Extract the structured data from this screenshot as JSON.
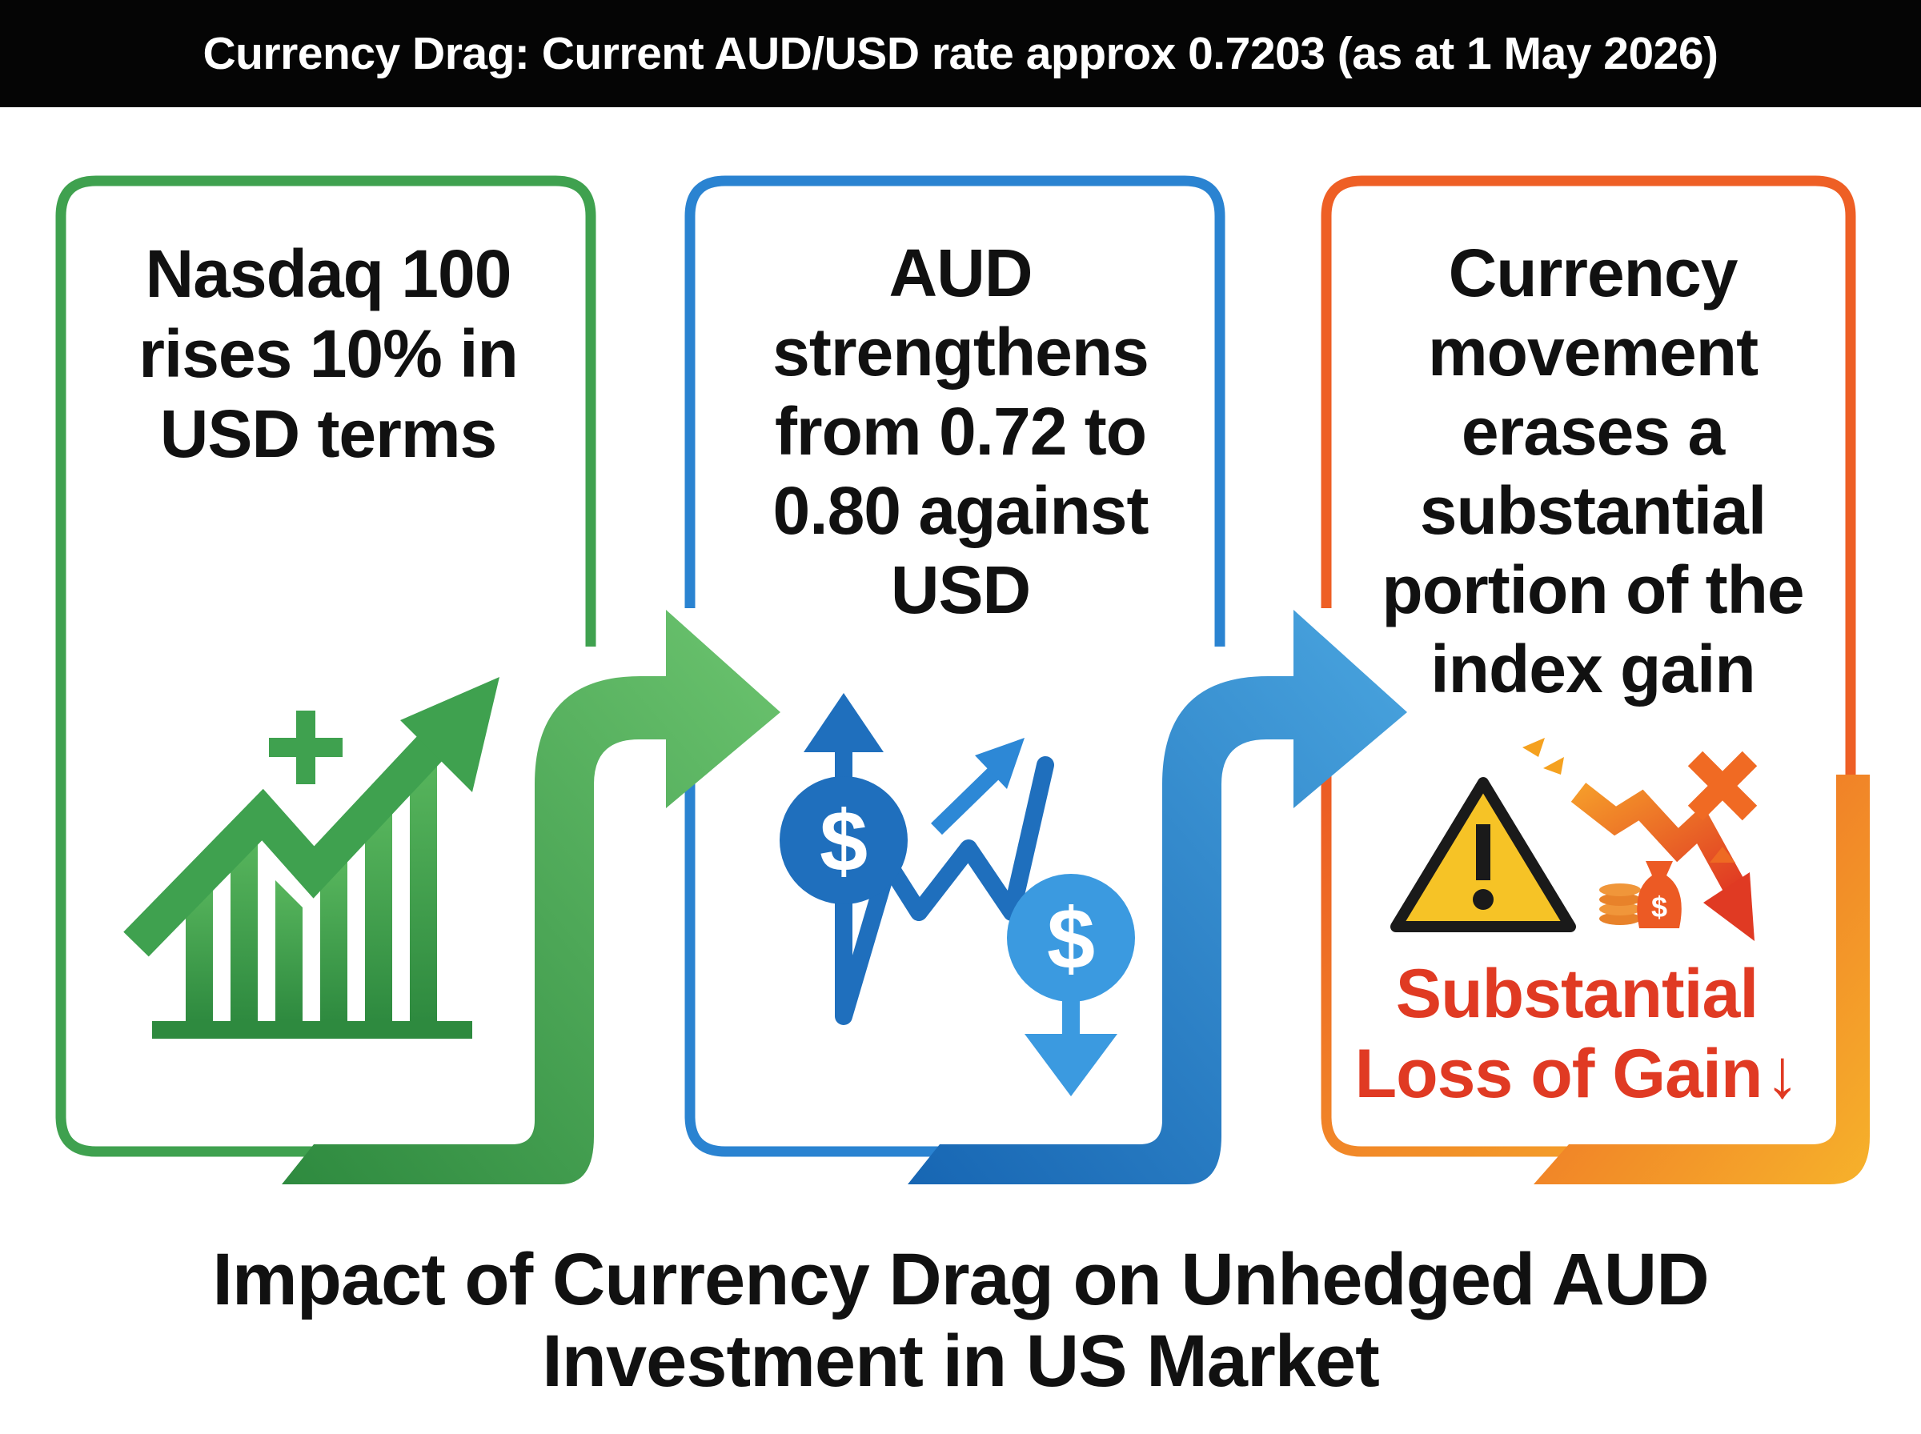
{
  "header": {
    "title": "Currency Drag: Current AUD/USD rate approx 0.7203 (as at 1 May 2026)"
  },
  "steps": [
    {
      "lines": [
        "Nasdaq 100",
        "rises 10% in",
        "USD terms"
      ],
      "color": "#3fa14f",
      "icon": "rising-bar-chart-icon"
    },
    {
      "lines": [
        "AUD",
        "strengthens",
        "from 0.72 to",
        "0.80 against",
        "USD"
      ],
      "color": "#1f78c8",
      "icon": "currency-swing-icon"
    },
    {
      "lines": [
        "Currency",
        "movement",
        "erases a",
        "substantial",
        "portion of the",
        "index gain"
      ],
      "color": "#f07a1e",
      "icon": "warning-loss-icon"
    }
  ],
  "warning": {
    "lines": [
      "Substantial",
      "Loss of Gain"
    ],
    "arrow": "↓",
    "color": "#e03a23"
  },
  "caption": {
    "lines": [
      "Impact of Currency Drag on Unhedged AUD",
      "Investment in US Market"
    ]
  },
  "colors": {
    "green": "#3fa14f",
    "blue": "#1f78c8",
    "orange": "#f07a1e",
    "red": "#e03a23",
    "yellow": "#f6c326",
    "banner": "#050505"
  }
}
